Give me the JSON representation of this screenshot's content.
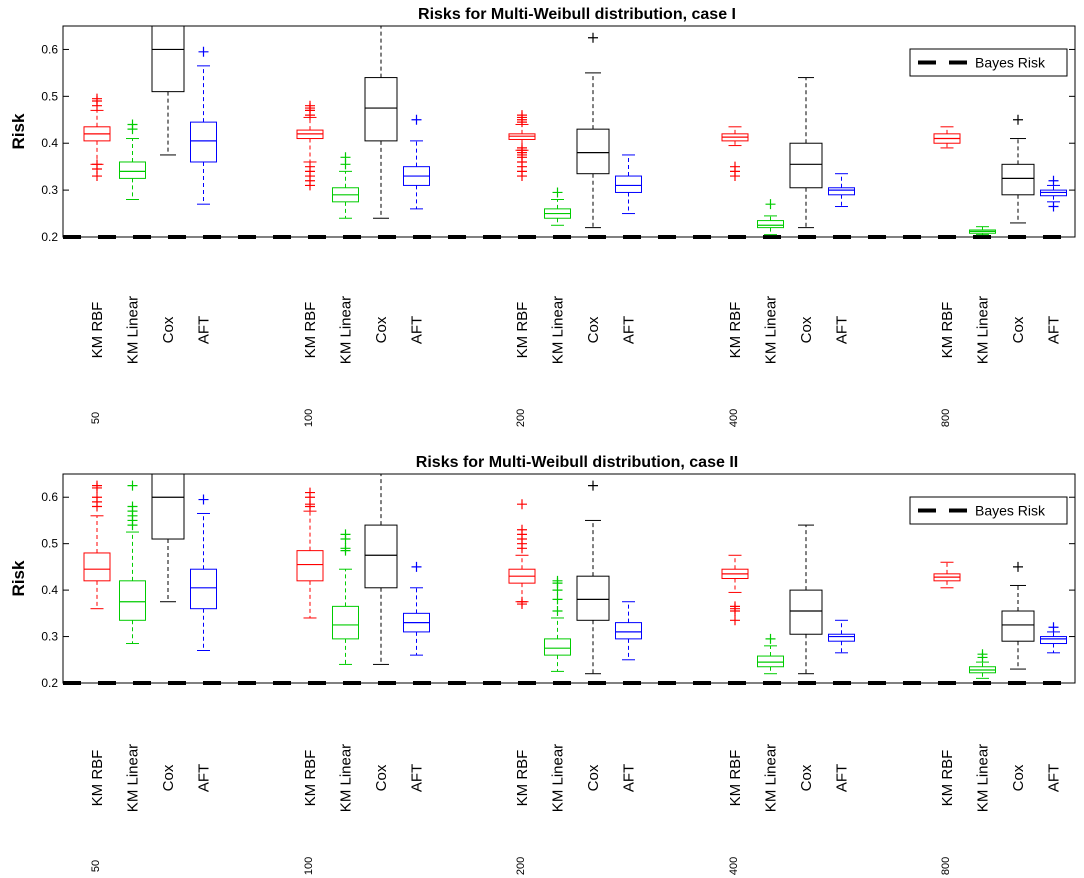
{
  "chart_data": [
    {
      "type": "box",
      "title": "Risks for Multi-Weibull distribution, case I",
      "ylabel": "Risk",
      "ylim": [
        0.2,
        0.65
      ],
      "yticks": [
        "0.2",
        "0.3",
        "0.4",
        "0.5",
        "0.6"
      ],
      "legend": {
        "label": "Bayes Risk",
        "position": "top-right"
      },
      "bayes_risk": 0.2,
      "groups": [
        "50",
        "100",
        "200",
        "400",
        "800"
      ],
      "methods": [
        "KM RBF",
        "KM Linear",
        "Cox",
        "AFT"
      ],
      "colors": {
        "KM RBF": "#ff0000",
        "KM Linear": "#00cc00",
        "Cox": "#000000",
        "AFT": "#0000ff"
      },
      "boxes": [
        [
          {
            "lw": 0.355,
            "q1": 0.405,
            "med": 0.42,
            "q3": 0.435,
            "uw": 0.47,
            "out": [
              0.33,
              0.345,
              0.355,
              0.48,
              0.49,
              0.495
            ]
          },
          {
            "lw": 0.28,
            "q1": 0.325,
            "med": 0.34,
            "q3": 0.36,
            "uw": 0.41,
            "out": [
              0.43,
              0.44
            ]
          },
          {
            "lw": 0.375,
            "q1": 0.51,
            "med": 0.6,
            "q3": 0.65,
            "uw": 0.65,
            "out": []
          },
          {
            "lw": 0.27,
            "q1": 0.36,
            "med": 0.405,
            "q3": 0.445,
            "uw": 0.565,
            "out": [
              0.595
            ]
          }
        ],
        [
          {
            "lw": 0.36,
            "q1": 0.41,
            "med": 0.42,
            "q3": 0.428,
            "uw": 0.455,
            "out": [
              0.31,
              0.32,
              0.33,
              0.34,
              0.35,
              0.46,
              0.47,
              0.475,
              0.48
            ]
          },
          {
            "lw": 0.24,
            "q1": 0.275,
            "med": 0.29,
            "q3": 0.305,
            "uw": 0.34,
            "out": [
              0.355,
              0.37
            ]
          },
          {
            "lw": 0.24,
            "q1": 0.405,
            "med": 0.475,
            "q3": 0.54,
            "uw": 0.65,
            "out": []
          },
          {
            "lw": 0.26,
            "q1": 0.31,
            "med": 0.33,
            "q3": 0.35,
            "uw": 0.405,
            "out": [
              0.45
            ]
          }
        ],
        [
          {
            "lw": 0.385,
            "q1": 0.408,
            "med": 0.415,
            "q3": 0.42,
            "uw": 0.44,
            "out": [
              0.33,
              0.34,
              0.35,
              0.36,
              0.37,
              0.375,
              0.38,
              0.385,
              0.39,
              0.445,
              0.45,
              0.455,
              0.46
            ]
          },
          {
            "lw": 0.225,
            "q1": 0.24,
            "med": 0.25,
            "q3": 0.26,
            "uw": 0.28,
            "out": [
              0.295
            ]
          },
          {
            "lw": 0.22,
            "q1": 0.335,
            "med": 0.38,
            "q3": 0.43,
            "uw": 0.55,
            "out": [
              0.625
            ]
          },
          {
            "lw": 0.25,
            "q1": 0.295,
            "med": 0.31,
            "q3": 0.33,
            "uw": 0.375,
            "out": []
          }
        ],
        [
          {
            "lw": 0.395,
            "q1": 0.405,
            "med": 0.413,
            "q3": 0.42,
            "uw": 0.435,
            "out": [
              0.33,
              0.34,
              0.35
            ]
          },
          {
            "lw": 0.205,
            "q1": 0.22,
            "med": 0.225,
            "q3": 0.235,
            "uw": 0.245,
            "out": [
              0.27
            ]
          },
          {
            "lw": 0.22,
            "q1": 0.305,
            "med": 0.355,
            "q3": 0.4,
            "uw": 0.54,
            "out": []
          },
          {
            "lw": 0.265,
            "q1": 0.29,
            "med": 0.3,
            "q3": 0.305,
            "uw": 0.335,
            "out": []
          }
        ],
        [
          {
            "lw": 0.39,
            "q1": 0.4,
            "med": 0.41,
            "q3": 0.42,
            "uw": 0.435,
            "out": []
          },
          {
            "lw": 0.205,
            "q1": 0.208,
            "med": 0.212,
            "q3": 0.215,
            "uw": 0.222,
            "out": []
          },
          {
            "lw": 0.23,
            "q1": 0.29,
            "med": 0.325,
            "q3": 0.355,
            "uw": 0.41,
            "out": [
              0.45
            ]
          },
          {
            "lw": 0.275,
            "q1": 0.288,
            "med": 0.295,
            "q3": 0.3,
            "uw": 0.31,
            "out": [
              0.265,
              0.32
            ]
          }
        ]
      ]
    },
    {
      "type": "box",
      "title": "Risks for Multi-Weibull distribution, case II",
      "ylabel": "Risk",
      "ylim": [
        0.2,
        0.65
      ],
      "yticks": [
        "0.2",
        "0.3",
        "0.4",
        "0.5",
        "0.6"
      ],
      "legend": {
        "label": "Bayes Risk",
        "position": "top-right"
      },
      "bayes_risk": 0.2,
      "groups": [
        "50",
        "100",
        "200",
        "400",
        "800"
      ],
      "methods": [
        "KM RBF",
        "KM Linear",
        "Cox",
        "AFT"
      ],
      "colors": {
        "KM RBF": "#ff0000",
        "KM Linear": "#00cc00",
        "Cox": "#000000",
        "AFT": "#0000ff"
      },
      "boxes": [
        [
          {
            "lw": 0.36,
            "q1": 0.42,
            "med": 0.445,
            "q3": 0.48,
            "uw": 0.56,
            "out": [
              0.58,
              0.59,
              0.6,
              0.62,
              0.625
            ]
          },
          {
            "lw": 0.285,
            "q1": 0.335,
            "med": 0.375,
            "q3": 0.42,
            "uw": 0.525,
            "out": [
              0.54,
              0.55,
              0.56,
              0.57,
              0.58,
              0.625
            ]
          },
          {
            "lw": 0.375,
            "q1": 0.51,
            "med": 0.6,
            "q3": 0.65,
            "uw": 0.65,
            "out": []
          },
          {
            "lw": 0.27,
            "q1": 0.36,
            "med": 0.405,
            "q3": 0.445,
            "uw": 0.565,
            "out": [
              0.595
            ]
          }
        ],
        [
          {
            "lw": 0.34,
            "q1": 0.42,
            "med": 0.455,
            "q3": 0.485,
            "uw": 0.57,
            "out": [
              0.58,
              0.585,
              0.6,
              0.61
            ]
          },
          {
            "lw": 0.24,
            "q1": 0.295,
            "med": 0.325,
            "q3": 0.365,
            "uw": 0.445,
            "out": [
              0.485,
              0.49,
              0.51,
              0.52
            ]
          },
          {
            "lw": 0.24,
            "q1": 0.405,
            "med": 0.475,
            "q3": 0.54,
            "uw": 0.65,
            "out": []
          },
          {
            "lw": 0.26,
            "q1": 0.31,
            "med": 0.33,
            "q3": 0.35,
            "uw": 0.405,
            "out": [
              0.45
            ]
          }
        ],
        [
          {
            "lw": 0.375,
            "q1": 0.415,
            "med": 0.43,
            "q3": 0.445,
            "uw": 0.475,
            "out": [
              0.37,
              0.375,
              0.49,
              0.5,
              0.51,
              0.52,
              0.53,
              0.585
            ]
          },
          {
            "lw": 0.225,
            "q1": 0.26,
            "med": 0.275,
            "q3": 0.295,
            "uw": 0.34,
            "out": [
              0.355,
              0.38,
              0.4,
              0.415,
              0.42
            ]
          },
          {
            "lw": 0.22,
            "q1": 0.335,
            "med": 0.38,
            "q3": 0.43,
            "uw": 0.55,
            "out": [
              0.625
            ]
          },
          {
            "lw": 0.25,
            "q1": 0.295,
            "med": 0.31,
            "q3": 0.33,
            "uw": 0.375,
            "out": []
          }
        ],
        [
          {
            "lw": 0.395,
            "q1": 0.425,
            "med": 0.435,
            "q3": 0.445,
            "uw": 0.475,
            "out": [
              0.335,
              0.355,
              0.36,
              0.365
            ]
          },
          {
            "lw": 0.22,
            "q1": 0.235,
            "med": 0.245,
            "q3": 0.258,
            "uw": 0.28,
            "out": [
              0.295
            ]
          },
          {
            "lw": 0.22,
            "q1": 0.305,
            "med": 0.355,
            "q3": 0.4,
            "uw": 0.54,
            "out": []
          },
          {
            "lw": 0.265,
            "q1": 0.29,
            "med": 0.3,
            "q3": 0.305,
            "uw": 0.335,
            "out": []
          }
        ],
        [
          {
            "lw": 0.405,
            "q1": 0.42,
            "med": 0.428,
            "q3": 0.435,
            "uw": 0.46,
            "out": []
          },
          {
            "lw": 0.21,
            "q1": 0.222,
            "med": 0.228,
            "q3": 0.235,
            "uw": 0.245,
            "out": [
              0.255,
              0.262
            ]
          },
          {
            "lw": 0.23,
            "q1": 0.29,
            "med": 0.325,
            "q3": 0.355,
            "uw": 0.41,
            "out": [
              0.45
            ]
          },
          {
            "lw": 0.265,
            "q1": 0.285,
            "med": 0.295,
            "q3": 0.3,
            "uw": 0.31,
            "out": [
              0.32
            ]
          }
        ]
      ]
    }
  ]
}
